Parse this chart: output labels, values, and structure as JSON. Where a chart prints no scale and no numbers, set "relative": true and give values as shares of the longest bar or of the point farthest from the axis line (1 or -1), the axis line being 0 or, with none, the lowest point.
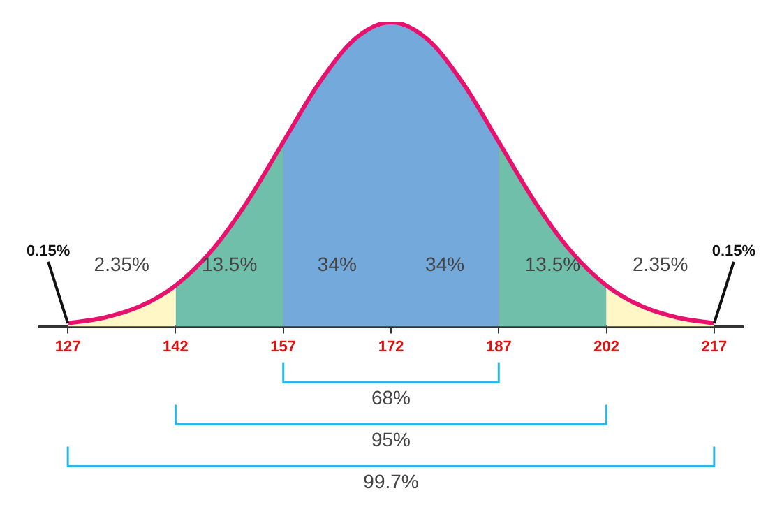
{
  "chart_data": {
    "type": "area",
    "relative": true,
    "marker": "none",
    "line_style": "solid",
    "xlim": [
      123,
      221
    ],
    "xticks": [
      127,
      142,
      157,
      172,
      187,
      202,
      217
    ],
    "series": [
      {
        "name": "2.35%",
        "color": "#fff8c6",
        "x": [
          127,
          132,
          137,
          142
        ],
        "values": [
          0.011,
          0.029,
          0.066,
          0.135
        ]
      },
      {
        "name": "13.5%",
        "color": "#6fbfaa",
        "x": [
          142,
          147,
          152,
          157
        ],
        "values": [
          0.135,
          0.249,
          0.411,
          0.607
        ]
      },
      {
        "name": "34%",
        "color": "#74a9dc",
        "x": [
          157,
          162,
          167,
          172
        ],
        "values": [
          0.607,
          0.801,
          0.946,
          1
        ]
      },
      {
        "name": "34%",
        "color": "#74a9dc",
        "x": [
          172,
          177,
          182,
          187
        ],
        "values": [
          1,
          0.946,
          0.801,
          0.607
        ]
      },
      {
        "name": "13.5%",
        "color": "#6fbfaa",
        "x": [
          187,
          192,
          197,
          202
        ],
        "values": [
          0.607,
          0.411,
          0.249,
          0.135
        ]
      },
      {
        "name": "2.35%",
        "color": "#fff8c6",
        "x": [
          202,
          207,
          212,
          217
        ],
        "values": [
          0.135,
          0.066,
          0.029,
          0.011
        ]
      },
      {
        "type": "line",
        "color": "#e8126e",
        "x": [
          127,
          132,
          137,
          142,
          147,
          152,
          157,
          162,
          167,
          172,
          177,
          182,
          187,
          192,
          197,
          202,
          207,
          212,
          217
        ],
        "values": [
          0.011,
          0.029,
          0.066,
          0.135,
          0.249,
          0.411,
          0.607,
          0.801,
          0.946,
          1,
          0.946,
          0.801,
          0.607,
          0.411,
          0.249,
          0.135,
          0.066,
          0.029,
          0.011
        ]
      }
    ],
    "annotations": [
      {
        "text": "0.15%",
        "x": 127,
        "y": 0.011
      },
      {
        "text": "0.15%",
        "x": 217,
        "y": 0.011
      },
      "68%",
      "95%",
      "99.7%"
    ]
  }
}
